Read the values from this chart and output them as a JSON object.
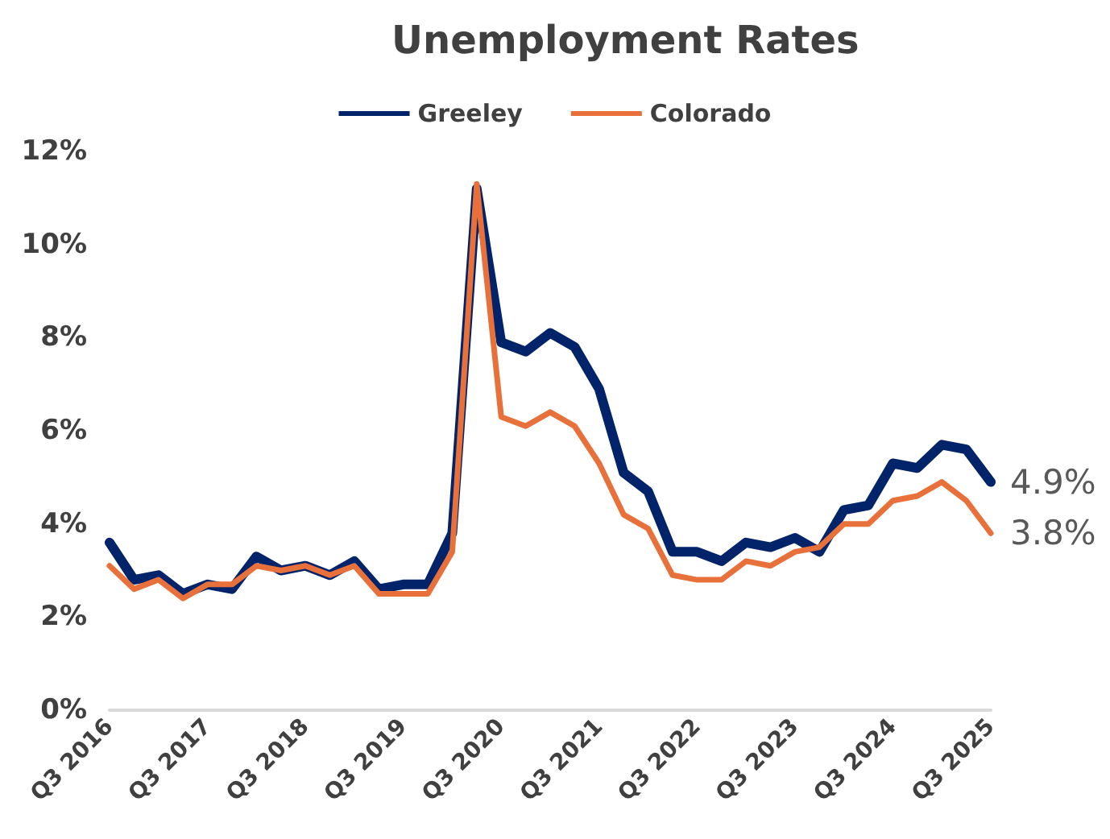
{
  "chart_data": {
    "type": "line",
    "title": "Unemployment Rates",
    "categories": [
      "Q3 2016",
      null,
      null,
      null,
      "Q3 2017",
      null,
      null,
      null,
      "Q3 2018",
      null,
      null,
      null,
      "Q3 2019",
      null,
      null,
      null,
      "Q3 2020",
      null,
      null,
      null,
      "Q3 2021",
      null,
      null,
      null,
      "Q3 2022",
      null,
      null,
      null,
      "Q3 2023",
      null,
      null,
      null,
      "Q3 2024",
      null,
      null,
      null,
      "Q3 2025"
    ],
    "series": [
      {
        "name": "Greeley",
        "color": "#002369",
        "values": [
          3.6,
          2.8,
          2.9,
          2.5,
          2.7,
          2.6,
          3.3,
          3.0,
          3.1,
          2.9,
          3.2,
          2.6,
          2.7,
          2.7,
          3.8,
          11.2,
          7.9,
          7.7,
          8.1,
          7.8,
          6.9,
          5.1,
          4.7,
          3.4,
          3.4,
          3.2,
          3.6,
          3.5,
          3.7,
          3.4,
          4.3,
          4.4,
          5.3,
          5.2,
          5.7,
          5.6,
          4.9
        ],
        "value_labels": [
          null,
          null,
          null,
          null,
          null,
          null,
          null,
          null,
          null,
          null,
          null,
          null,
          null,
          null,
          null,
          null,
          null,
          null,
          null,
          null,
          null,
          null,
          null,
          null,
          null,
          null,
          null,
          null,
          null,
          null,
          null,
          null,
          null,
          null,
          null,
          null,
          "4.9%"
        ]
      },
      {
        "name": "Colorado",
        "color": "#e8703a",
        "values": [
          3.1,
          2.6,
          2.8,
          2.4,
          2.7,
          2.7,
          3.1,
          3.0,
          3.1,
          2.9,
          3.1,
          2.5,
          2.5,
          2.5,
          3.4,
          11.3,
          6.3,
          6.1,
          6.4,
          6.1,
          5.3,
          4.2,
          3.9,
          2.9,
          2.8,
          2.8,
          3.2,
          3.1,
          3.4,
          3.5,
          4.0,
          4.0,
          4.5,
          4.6,
          4.9,
          4.5,
          3.8
        ],
        "value_labels": [
          null,
          null,
          null,
          null,
          null,
          null,
          null,
          null,
          null,
          null,
          null,
          null,
          null,
          null,
          null,
          null,
          null,
          null,
          null,
          null,
          null,
          null,
          null,
          null,
          null,
          null,
          null,
          null,
          null,
          null,
          null,
          null,
          null,
          null,
          null,
          null,
          "3.8%"
        ]
      }
    ],
    "ylim": [
      0,
      12
    ],
    "yticks": [
      {
        "value": 0,
        "label": "0%"
      },
      {
        "value": 2,
        "label": "2%"
      },
      {
        "value": 4,
        "label": "4%"
      },
      {
        "value": 6,
        "label": "6%"
      },
      {
        "value": 8,
        "label": "8%"
      },
      {
        "value": 10,
        "label": "10%"
      },
      {
        "value": 12,
        "label": "12%"
      }
    ],
    "grid": false,
    "legend": "top",
    "marker": "none",
    "line_style": "solid"
  }
}
